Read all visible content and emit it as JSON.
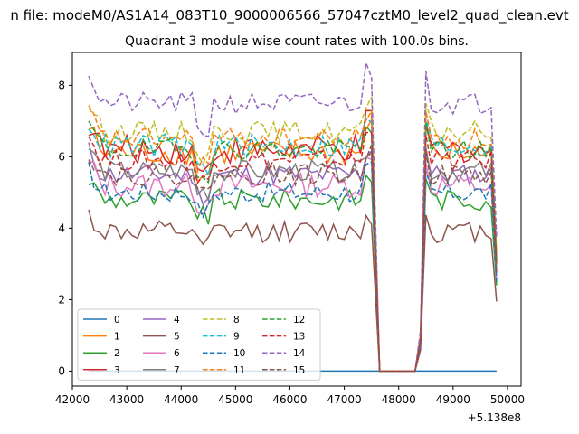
{
  "suptitle": "n file: modeM0/AS1A14_083T10_9000006566_57047cztM0_level2_quad_clean.evt",
  "chart_data": {
    "type": "line",
    "title": "Quadrant 3 module wise count rates with 100.0s bins.",
    "xlabel": "",
    "ylabel": "",
    "x_offset_label": "+5.138e8",
    "xlim": [
      42000,
      50250
    ],
    "ylim": [
      -0.42,
      8.92
    ],
    "xticks": [
      "42000",
      "43000",
      "44000",
      "45000",
      "46000",
      "47000",
      "48000",
      "49000",
      "50000"
    ],
    "yticks": [
      "0",
      "2",
      "4",
      "6",
      "8"
    ],
    "grid": false,
    "legend_placement": "lower-left",
    "series": [
      {
        "name": "0",
        "color": "#1f77b4",
        "style": "solid",
        "base": 0.0,
        "amp": 0.0
      },
      {
        "name": "1",
        "color": "#ff7f0e",
        "style": "solid",
        "base": 6.1,
        "amp": 0.35
      },
      {
        "name": "2",
        "color": "#2ca02c",
        "style": "solid",
        "base": 4.8,
        "amp": 0.3
      },
      {
        "name": "3",
        "color": "#d62728",
        "style": "solid",
        "base": 6.2,
        "amp": 0.4
      },
      {
        "name": "4",
        "color": "#9467bd",
        "style": "solid",
        "base": 5.5,
        "amp": 0.3
      },
      {
        "name": "5",
        "color": "#8c564b",
        "style": "solid",
        "base": 3.9,
        "amp": 0.3
      },
      {
        "name": "6",
        "color": "#e377c2",
        "style": "solid",
        "base": 5.2,
        "amp": 0.35
      },
      {
        "name": "7",
        "color": "#7f7f7f",
        "style": "solid",
        "base": 5.6,
        "amp": 0.3
      },
      {
        "name": "8",
        "color": "#bcbd22",
        "style": "dashed",
        "base": 6.7,
        "amp": 0.3
      },
      {
        "name": "9",
        "color": "#17becf",
        "style": "dashed",
        "base": 6.3,
        "amp": 0.35
      },
      {
        "name": "10",
        "color": "#1f77b4",
        "style": "dashed",
        "base": 5.0,
        "amp": 0.3
      },
      {
        "name": "11",
        "color": "#ff7f0e",
        "style": "dashed",
        "base": 6.5,
        "amp": 0.3
      },
      {
        "name": "12",
        "color": "#2ca02c",
        "style": "dashed",
        "base": 6.2,
        "amp": 0.3
      },
      {
        "name": "13",
        "color": "#d62728",
        "style": "dashed",
        "base": 5.9,
        "amp": 0.3
      },
      {
        "name": "14",
        "color": "#9467bd",
        "style": "dashed",
        "base": 7.5,
        "amp": 0.3
      },
      {
        "name": "15",
        "color": "#8c564b",
        "style": "dashed",
        "base": 5.5,
        "amp": 0.3
      }
    ],
    "segments": [
      {
        "start": 42300,
        "end": 47500
      },
      {
        "start": 48400,
        "end": 49850
      }
    ],
    "gap": {
      "drop_start": 47650,
      "drop_end": 48300
    }
  }
}
